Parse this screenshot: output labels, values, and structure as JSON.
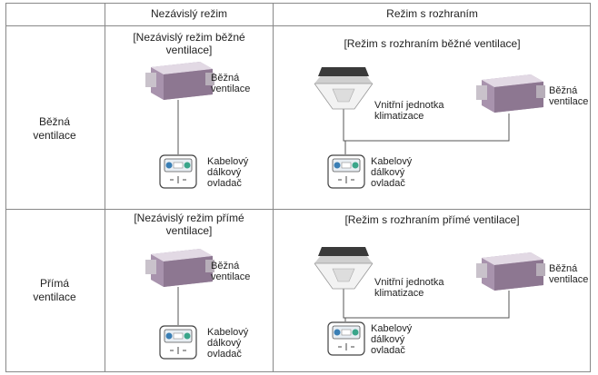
{
  "table": {
    "columns": [
      "Nezávislý režim",
      "Režim s rozhraním"
    ],
    "rows": [
      {
        "label": "Běžná ventilace",
        "independent": {
          "title": "[Nezávislý režim běžné ventilace]",
          "unit": "Běžná ventilace",
          "controller": "Kabelový dálkový ovladač"
        },
        "interface": {
          "title": "[Režim s rozhraním běžné ventilace]",
          "indoor": "Vnitřní jednotka klimatizace",
          "unit": "Běžná ventilace",
          "controller": "Kabelový dálkový ovladač"
        }
      },
      {
        "label": "Přímá ventilace",
        "independent": {
          "title": "[Nezávislý režim přímé ventilace]",
          "unit": "Běžná ventilace",
          "controller": "Kabelový dálkový ovladač"
        },
        "interface": {
          "title": "[Režim s rozhraním přímé ventilace]",
          "indoor": "Vnitřní jednotka klimatizace",
          "unit": "Běžná ventilace",
          "controller": "Kabelový dálkový ovladač"
        }
      }
    ]
  }
}
